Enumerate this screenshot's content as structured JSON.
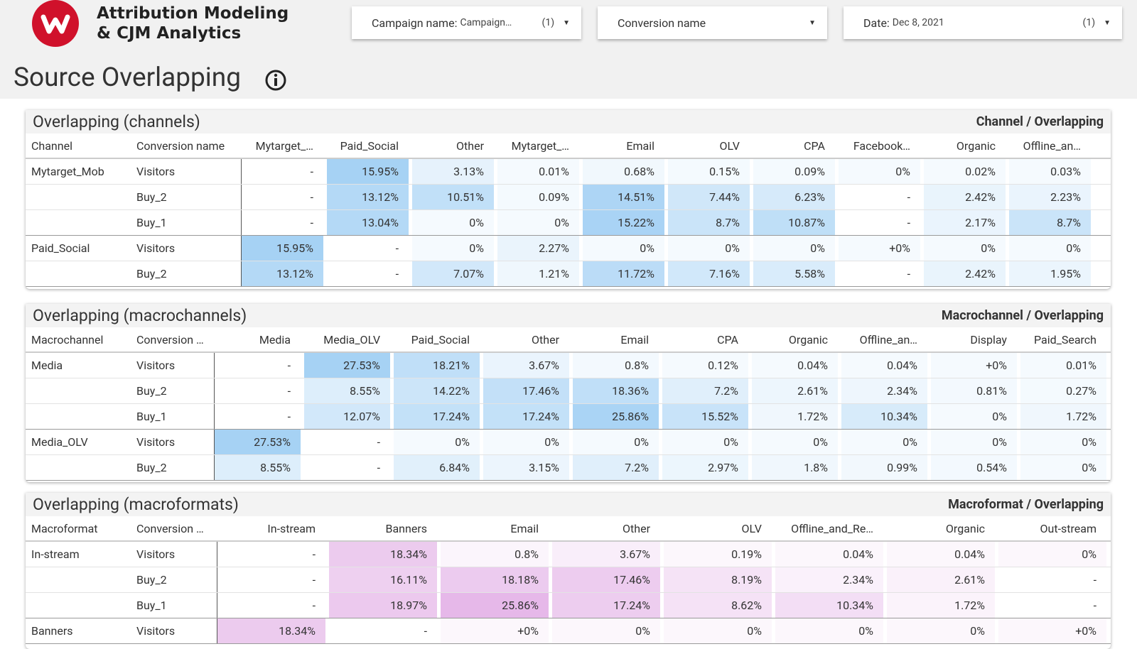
{
  "header": {
    "title_line1": "Attribution Modeling",
    "title_line2": "& CJM Analytics",
    "filters": [
      {
        "label": "Campaign name:",
        "value": "Campaign…",
        "count": "(1)"
      },
      {
        "label": "Conversion name"
      },
      {
        "label": "Date:",
        "value": "Dec 8, 2021",
        "count": "(1)"
      }
    ]
  },
  "page_title": "Source Overlapping",
  "panels": [
    {
      "title": "Overlapping (channels)",
      "subtitle": "Channel / Overlapping",
      "heat_color": "#6fb6ee",
      "columns": [
        "Channel",
        "Conversion name",
        "Mytarget_…",
        "Paid_Social",
        "Other",
        "Mytarget_…",
        "Email",
        "OLV",
        "CPA",
        "Facebook…",
        "Organic",
        "Offline_an…"
      ],
      "groups": [
        {
          "name": "Mytarget_Mob",
          "rows": [
            {
              "conversion": "Visitors",
              "cells": [
                "-",
                "15.95%",
                "3.13%",
                "0.01%",
                "0.68%",
                "0.15%",
                "0.09%",
                "0%",
                "0.02%",
                "0.03%"
              ]
            },
            {
              "conversion": "Buy_2",
              "cells": [
                "-",
                "13.12%",
                "10.51%",
                "0.09%",
                "14.51%",
                "7.44%",
                "6.23%",
                "-",
                "2.42%",
                "2.23%"
              ]
            },
            {
              "conversion": "Buy_1",
              "cells": [
                "-",
                "13.04%",
                "0%",
                "0%",
                "15.22%",
                "8.7%",
                "10.87%",
                "-",
                "2.17%",
                "8.7%"
              ]
            }
          ]
        },
        {
          "name": "Paid_Social",
          "rows": [
            {
              "conversion": "Visitors",
              "cells": [
                "15.95%",
                "-",
                "0%",
                "2.27%",
                "0%",
                "0%",
                "0%",
                "+0%",
                "0%",
                "0%"
              ]
            },
            {
              "conversion": "Buy_2",
              "cells": [
                "13.12%",
                "-",
                "7.07%",
                "1.21%",
                "11.72%",
                "7.16%",
                "5.58%",
                "-",
                "2.42%",
                "1.95%"
              ]
            }
          ]
        }
      ]
    },
    {
      "title": "Overlapping (macrochannels)",
      "subtitle": "Macrochannel / Overlapping",
      "heat_color": "#6fb6ee",
      "columns": [
        "Macrochannel",
        "Conversion …",
        "Media",
        "Media_OLV",
        "Paid_Social",
        "Other",
        "Email",
        "CPA",
        "Organic",
        "Offline_an…",
        "Display",
        "Paid_Search"
      ],
      "groups": [
        {
          "name": "Media",
          "rows": [
            {
              "conversion": "Visitors",
              "cells": [
                "-",
                "27.53%",
                "18.21%",
                "3.67%",
                "0.8%",
                "0.12%",
                "0.04%",
                "0.04%",
                "+0%",
                "0.01%"
              ]
            },
            {
              "conversion": "Buy_2",
              "cells": [
                "-",
                "8.55%",
                "14.22%",
                "17.46%",
                "18.36%",
                "7.2%",
                "2.61%",
                "2.34%",
                "0.81%",
                "0.27%"
              ]
            },
            {
              "conversion": "Buy_1",
              "cells": [
                "-",
                "12.07%",
                "17.24%",
                "17.24%",
                "25.86%",
                "15.52%",
                "1.72%",
                "10.34%",
                "0%",
                "1.72%"
              ]
            }
          ]
        },
        {
          "name": "Media_OLV",
          "rows": [
            {
              "conversion": "Visitors",
              "cells": [
                "27.53%",
                "-",
                "0%",
                "0%",
                "0%",
                "0%",
                "0%",
                "0%",
                "0%",
                "0%"
              ]
            },
            {
              "conversion": "Buy_2",
              "cells": [
                "8.55%",
                "-",
                "6.84%",
                "3.15%",
                "7.2%",
                "2.97%",
                "1.8%",
                "0.99%",
                "0.54%",
                "0%"
              ]
            }
          ]
        }
      ]
    },
    {
      "title": "Overlapping (macroformats)",
      "subtitle": "Macroformat / Overlapping",
      "heat_color": "#d68ddb",
      "columns": [
        "Macroformat",
        "Conversion …",
        "In-stream",
        "Banners",
        "Email",
        "Other",
        "OLV",
        "Offline_and_Re…",
        "Organic",
        "Out-stream"
      ],
      "groups": [
        {
          "name": "In-stream",
          "rows": [
            {
              "conversion": "Visitors",
              "cells": [
                "-",
                "18.34%",
                "0.8%",
                "3.67%",
                "0.19%",
                "0.04%",
                "0.04%",
                "0%"
              ]
            },
            {
              "conversion": "Buy_2",
              "cells": [
                "-",
                "16.11%",
                "18.18%",
                "17.46%",
                "8.19%",
                "2.34%",
                "2.61%",
                "-"
              ]
            },
            {
              "conversion": "Buy_1",
              "cells": [
                "-",
                "18.97%",
                "25.86%",
                "17.24%",
                "8.62%",
                "10.34%",
                "1.72%",
                "-"
              ]
            }
          ]
        },
        {
          "name": "Banners",
          "rows": [
            {
              "conversion": "Visitors",
              "cells": [
                "18.34%",
                "-",
                "+0%",
                "0%",
                "0%",
                "0%",
                "0%",
                "+0%"
              ]
            }
          ]
        }
      ]
    }
  ]
}
